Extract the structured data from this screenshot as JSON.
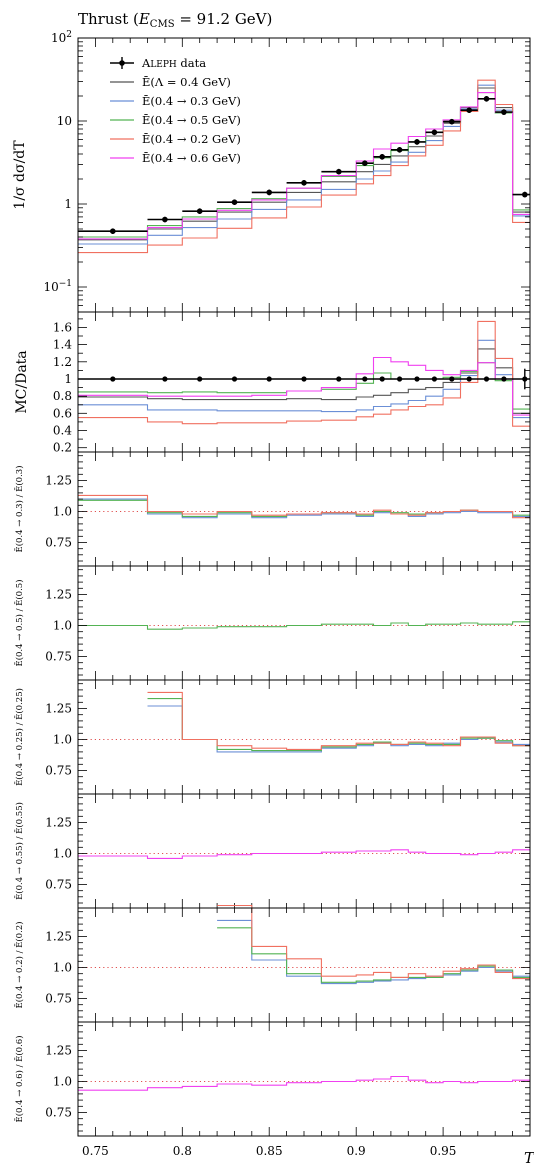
{
  "title": "Thrust (E_CMS = 91.2 GeV)",
  "title_parts": {
    "pre": "Thrust (",
    "E": "E",
    "sub": "CMS",
    "post": " = 91.2 GeV)"
  },
  "x_axis_label": "T",
  "chart_data": {
    "type": "line",
    "step": true,
    "x_edges": [
      0.74,
      0.78,
      0.8,
      0.82,
      0.84,
      0.86,
      0.88,
      0.9,
      0.91,
      0.92,
      0.93,
      0.94,
      0.95,
      0.96,
      0.97,
      0.98,
      0.99,
      1.0
    ],
    "xlim": [
      0.74,
      1.0
    ],
    "x_ticks": [
      0.75,
      0.8,
      0.85,
      0.9,
      0.95
    ],
    "x_tick_labels": [
      "0.75",
      "0.8",
      "0.85",
      "0.9",
      "0.95"
    ],
    "xlabel": "T",
    "main_panel": {
      "ylabel": "1/σ dσ/dT",
      "yscale": "log",
      "ylim": [
        0.05,
        100
      ],
      "y_ticks": [
        0.1,
        1,
        10,
        100
      ],
      "y_tick_labels": [
        "10^-1",
        "1",
        "10",
        "10^2"
      ],
      "data": {
        "name": "ALEPH data",
        "x": [
          0.76,
          0.79,
          0.81,
          0.83,
          0.85,
          0.87,
          0.89,
          0.905,
          0.915,
          0.925,
          0.935,
          0.945,
          0.955,
          0.965,
          0.975,
          0.985,
          0.997
        ],
        "y": [
          0.47,
          0.65,
          0.82,
          1.05,
          1.38,
          1.8,
          2.45,
          3.1,
          3.7,
          4.5,
          5.6,
          7.3,
          9.8,
          13.5,
          18.5,
          12.8,
          1.3
        ]
      },
      "series": [
        {
          "name": "Ē(Λ = 0.4 GeV)",
          "color": "#555555",
          "values": [
            0.37,
            0.5,
            0.62,
            0.8,
            1.05,
            1.38,
            1.85,
            2.45,
            3.0,
            3.8,
            4.9,
            6.6,
            9.4,
            14.5,
            25.0,
            14.5,
            0.8
          ]
        },
        {
          "name": "Ē(0.4 → 0.3 GeV)",
          "color": "#6b8fd6",
          "values": [
            0.33,
            0.42,
            0.52,
            0.66,
            0.86,
            1.12,
            1.5,
            2.0,
            2.5,
            3.2,
            4.2,
            5.8,
            8.6,
            14.0,
            27.0,
            13.5,
            0.72
          ]
        },
        {
          "name": "Ē(0.4 → 0.5 GeV)",
          "color": "#54b354",
          "values": [
            0.4,
            0.55,
            0.7,
            0.88,
            1.16,
            1.55,
            2.15,
            2.9,
            3.6,
            4.4,
            5.6,
            7.3,
            10.0,
            14.7,
            22.0,
            12.5,
            0.85
          ]
        },
        {
          "name": "Ē(0.4 → 0.2 GeV)",
          "color": "#f07060",
          "values": [
            0.26,
            0.32,
            0.39,
            0.51,
            0.68,
            0.92,
            1.28,
            1.75,
            2.2,
            2.9,
            3.8,
            5.1,
            7.6,
            13.0,
            31.0,
            15.8,
            0.6
          ]
        },
        {
          "name": "Ē(0.4 → 0.6 GeV)",
          "color": "#f040f0",
          "values": [
            0.38,
            0.52,
            0.66,
            0.84,
            1.12,
            1.55,
            2.2,
            3.3,
            4.6,
            5.4,
            6.5,
            8.0,
            10.3,
            14.8,
            22.0,
            12.8,
            0.75
          ]
        }
      ]
    },
    "ratio_panel": {
      "ylabel": "MC/Data",
      "ylim": [
        0.15,
        1.78
      ],
      "y_ticks": [
        0.2,
        0.4,
        0.6,
        0.8,
        1.0,
        1.2,
        1.4,
        1.6
      ],
      "y_tick_labels": [
        "0.2",
        "0.4",
        "0.6",
        "0.8",
        "1",
        "1.2",
        "1.4",
        "1.6"
      ],
      "series": [
        {
          "name": "Ē(Λ = 0.4 GeV)",
          "color": "#555555",
          "values": [
            0.79,
            0.77,
            0.76,
            0.76,
            0.76,
            0.77,
            0.76,
            0.79,
            0.81,
            0.84,
            0.88,
            0.9,
            0.96,
            1.07,
            1.35,
            1.13,
            0.6
          ]
        },
        {
          "name": "Ē(0.4 → 0.3 GeV)",
          "color": "#6b8fd6",
          "values": [
            0.7,
            0.64,
            0.64,
            0.63,
            0.63,
            0.63,
            0.62,
            0.64,
            0.68,
            0.71,
            0.75,
            0.8,
            0.88,
            1.04,
            1.45,
            1.05,
            0.55
          ]
        },
        {
          "name": "Ē(0.4 → 0.5 GeV)",
          "color": "#54b354",
          "values": [
            0.85,
            0.84,
            0.85,
            0.84,
            0.84,
            0.86,
            0.88,
            0.95,
            1.07,
            1.0,
            1.0,
            1.0,
            1.02,
            1.09,
            1.19,
            0.98,
            0.65
          ]
        },
        {
          "name": "Ē(0.4 → 0.2 GeV)",
          "color": "#f07060",
          "values": [
            0.55,
            0.5,
            0.48,
            0.49,
            0.49,
            0.51,
            0.52,
            0.56,
            0.59,
            0.64,
            0.68,
            0.7,
            0.78,
            0.96,
            1.67,
            1.24,
            0.45
          ]
        },
        {
          "name": "Ē(0.4 → 0.6 GeV)",
          "color": "#f040f0",
          "values": [
            0.81,
            0.8,
            0.8,
            0.8,
            0.81,
            0.86,
            0.9,
            1.06,
            1.25,
            1.2,
            1.16,
            1.1,
            1.05,
            1.1,
            1.19,
            1.0,
            0.58
          ]
        }
      ]
    },
    "sub_panels": [
      {
        "ylabel": "Ē(0.4 → 0.3) / Ē(0.3)",
        "lines": [
          {
            "color": "#6b8fd6",
            "values": [
              1.1,
              0.98,
              0.95,
              0.98,
              0.95,
              0.97,
              0.98,
              0.96,
              0.99,
              0.98,
              0.96,
              0.98,
              0.99,
              1.0,
              0.99,
              0.99,
              0.96
            ]
          },
          {
            "color": "#54b354",
            "values": [
              1.09,
              0.99,
              0.96,
              0.99,
              0.96,
              0.98,
              0.99,
              0.97,
              1.0,
              0.99,
              0.98,
              0.99,
              1.0,
              1.01,
              1.0,
              1.0,
              0.97
            ]
          },
          {
            "color": "#f07060",
            "values": [
              1.13,
              1.0,
              0.98,
              1.0,
              0.97,
              0.98,
              0.99,
              0.98,
              1.01,
              0.98,
              0.97,
              0.99,
              1.0,
              1.01,
              1.0,
              1.0,
              0.95
            ]
          }
        ]
      },
      {
        "ylabel": "Ē(0.4 → 0.5) / Ē(0.5)",
        "lines": [
          {
            "color": "#54b354",
            "values": [
              1.0,
              0.97,
              0.98,
              0.99,
              0.99,
              1.0,
              1.01,
              1.01,
              1.0,
              1.02,
              1.0,
              1.01,
              1.01,
              1.02,
              1.01,
              1.01,
              1.03
            ]
          }
        ]
      },
      {
        "ylabel": "Ē(0.4 → 0.25) / Ē(0.25)",
        "lines": [
          {
            "color": "#6b8fd6",
            "values": [
              null,
              1.27,
              1.0,
              0.9,
              0.9,
              0.9,
              0.93,
              0.95,
              0.97,
              0.95,
              0.96,
              0.95,
              0.97,
              1.0,
              1.01,
              0.98,
              0.96
            ]
          },
          {
            "color": "#54b354",
            "values": [
              null,
              1.33,
              1.0,
              0.92,
              0.91,
              0.91,
              0.94,
              0.96,
              0.98,
              0.96,
              0.97,
              0.96,
              0.96,
              1.01,
              1.01,
              0.99,
              0.95
            ]
          },
          {
            "color": "#f07060",
            "values": [
              null,
              1.38,
              1.0,
              0.95,
              0.93,
              0.92,
              0.95,
              0.97,
              0.97,
              0.96,
              0.98,
              0.97,
              0.95,
              1.02,
              1.02,
              0.97,
              0.95
            ]
          }
        ]
      },
      {
        "ylabel": "Ē(0.4 → 0.55) / Ē(0.55)",
        "lines": [
          {
            "color": "#f040f0",
            "values": [
              0.98,
              0.96,
              0.98,
              0.99,
              1.0,
              1.0,
              1.01,
              1.02,
              1.02,
              1.03,
              1.01,
              1.0,
              1.0,
              0.99,
              1.0,
              1.01,
              1.03
            ]
          }
        ]
      },
      {
        "ylabel": "Ē(0.4 → 0.2) / Ē(0.2)",
        "lines": [
          {
            "color": "#6b8fd6",
            "values": [
              null,
              null,
              null,
              1.38,
              1.06,
              0.93,
              0.87,
              0.88,
              0.89,
              0.9,
              0.91,
              0.93,
              0.94,
              0.97,
              1.0,
              0.97,
              0.93
            ]
          },
          {
            "color": "#54b354",
            "values": [
              null,
              null,
              null,
              1.32,
              1.11,
              0.95,
              0.88,
              0.89,
              0.9,
              0.92,
              0.92,
              0.92,
              0.95,
              0.98,
              1.01,
              0.98,
              0.92
            ]
          },
          {
            "color": "#f07060",
            "values": [
              null,
              null,
              null,
              1.5,
              1.17,
              1.07,
              0.93,
              0.94,
              0.96,
              0.92,
              0.95,
              0.93,
              0.97,
              0.99,
              1.02,
              0.96,
              0.91
            ]
          }
        ]
      },
      {
        "ylabel": "Ē(0.4 → 0.6) / Ē(0.6)",
        "lines": [
          {
            "color": "#f040f0",
            "values": [
              0.93,
              0.95,
              0.96,
              0.98,
              0.97,
              0.99,
              1.0,
              1.01,
              1.02,
              1.04,
              1.01,
              0.99,
              1.0,
              0.99,
              1.0,
              1.0,
              1.01
            ]
          }
        ]
      }
    ],
    "sub_panel_ylim": [
      0.56,
      1.48
    ],
    "sub_panel_y_ticks": [
      0.75,
      1.0,
      1.25
    ],
    "sub_panel_y_tick_labels": [
      "0.75",
      "1.0",
      "1.25"
    ],
    "legend_position": "top-left"
  }
}
